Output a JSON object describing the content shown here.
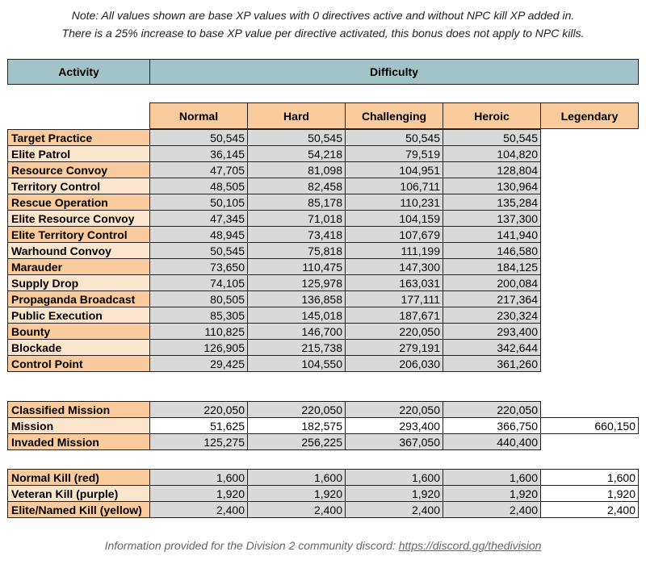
{
  "notes": {
    "line1": "Note: All values shown are base XP values with 0 directives active and without NPC kill XP added in.",
    "line2": "There is a 25% increase to base XP value per directive activated, this bonus does not apply to NPC kills."
  },
  "header": {
    "activity": "Activity",
    "difficulty": "Difficulty"
  },
  "columns": [
    "Normal",
    "Hard",
    "Challenging",
    "Heroic",
    "Legendary"
  ],
  "activities": [
    {
      "name": "Target Practice",
      "values": [
        "50,545",
        "50,545",
        "50,545",
        "50,545",
        ""
      ]
    },
    {
      "name": "Elite Patrol",
      "values": [
        "36,145",
        "54,218",
        "79,519",
        "104,820",
        ""
      ]
    },
    {
      "name": "Resource Convoy",
      "values": [
        "47,705",
        "81,098",
        "104,951",
        "128,804",
        ""
      ]
    },
    {
      "name": "Territory Control",
      "values": [
        "48,505",
        "82,458",
        "106,711",
        "130,964",
        ""
      ]
    },
    {
      "name": "Rescue Operation",
      "values": [
        "50,105",
        "85,178",
        "110,231",
        "135,284",
        ""
      ]
    },
    {
      "name": "Elite Resource Convoy",
      "values": [
        "47,345",
        "71,018",
        "104,159",
        "137,300",
        ""
      ]
    },
    {
      "name": "Elite Territory Control",
      "values": [
        "48,945",
        "73,418",
        "107,679",
        "141,940",
        ""
      ]
    },
    {
      "name": "Warhound Convoy",
      "values": [
        "50,545",
        "75,818",
        "111,199",
        "146,580",
        ""
      ]
    },
    {
      "name": "Marauder",
      "values": [
        "73,650",
        "110,475",
        "147,300",
        "184,125",
        ""
      ]
    },
    {
      "name": "Supply Drop",
      "values": [
        "74,105",
        "125,978",
        "163,031",
        "200,084",
        ""
      ]
    },
    {
      "name": "Propaganda Broadcast",
      "values": [
        "80,505",
        "136,858",
        "177,111",
        "217,364",
        ""
      ]
    },
    {
      "name": "Public Execution",
      "values": [
        "85,305",
        "145,018",
        "187,671",
        "230,324",
        ""
      ]
    },
    {
      "name": "Bounty",
      "values": [
        "110,825",
        "146,700",
        "220,050",
        "293,400",
        ""
      ]
    },
    {
      "name": "Blockade",
      "values": [
        "126,905",
        "215,738",
        "279,191",
        "342,644",
        ""
      ]
    },
    {
      "name": "Control Point",
      "values": [
        "29,425",
        "104,550",
        "206,030",
        "361,260",
        ""
      ]
    }
  ],
  "missions": [
    {
      "name": "Classified Mission",
      "values": [
        "220,050",
        "220,050",
        "220,050",
        "220,050",
        ""
      ]
    },
    {
      "name": "Mission",
      "values": [
        "51,625",
        "182,575",
        "293,400",
        "366,750",
        "660,150"
      ]
    },
    {
      "name": "Invaded Mission",
      "values": [
        "125,275",
        "256,225",
        "367,050",
        "440,400",
        ""
      ]
    }
  ],
  "kills": [
    {
      "name": "Normal Kill (red)",
      "values": [
        "1,600",
        "1,600",
        "1,600",
        "1,600",
        "1,600"
      ]
    },
    {
      "name": "Veteran Kill (purple)",
      "values": [
        "1,920",
        "1,920",
        "1,920",
        "1,920",
        "1,920"
      ]
    },
    {
      "name": "Elite/Named Kill (yellow)",
      "values": [
        "2,400",
        "2,400",
        "2,400",
        "2,400",
        "2,400"
      ]
    }
  ],
  "footer": {
    "text": "Information provided for the Division 2 community discord: ",
    "link": "https://discord.gg/thedivision"
  }
}
